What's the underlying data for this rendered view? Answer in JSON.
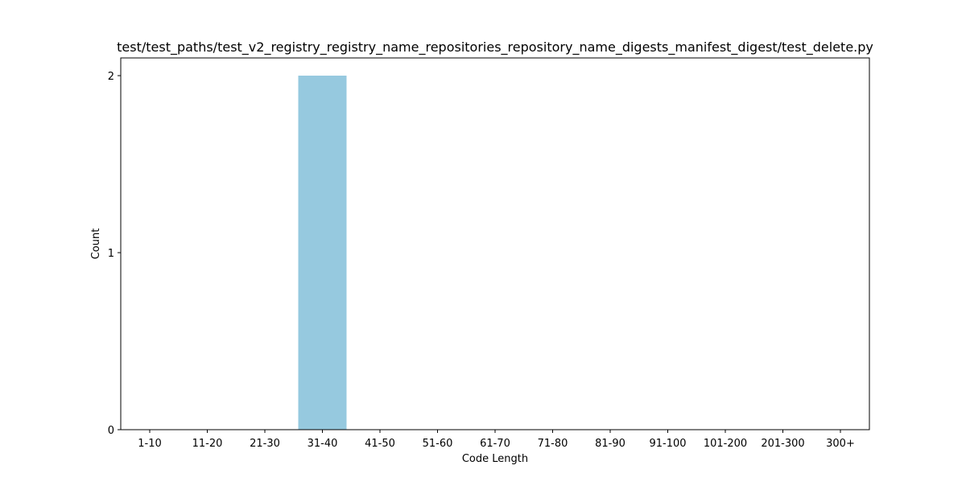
{
  "chart_data": {
    "type": "bar",
    "title": "test/test_paths/test_v2_registry_registry_name_repositories_repository_name_digests_manifest_digest/test_delete.py",
    "xlabel": "Code Length",
    "ylabel": "Count",
    "categories": [
      "1-10",
      "11-20",
      "21-30",
      "31-40",
      "41-50",
      "51-60",
      "61-70",
      "71-80",
      "81-90",
      "91-100",
      "101-200",
      "201-300",
      "300+"
    ],
    "values": [
      0,
      0,
      0,
      2,
      0,
      0,
      0,
      0,
      0,
      0,
      0,
      0,
      0
    ],
    "ylim": [
      0,
      2.1
    ],
    "yticks": [
      0,
      1,
      2
    ],
    "bar_color": "#96c9df",
    "grid": false
  }
}
